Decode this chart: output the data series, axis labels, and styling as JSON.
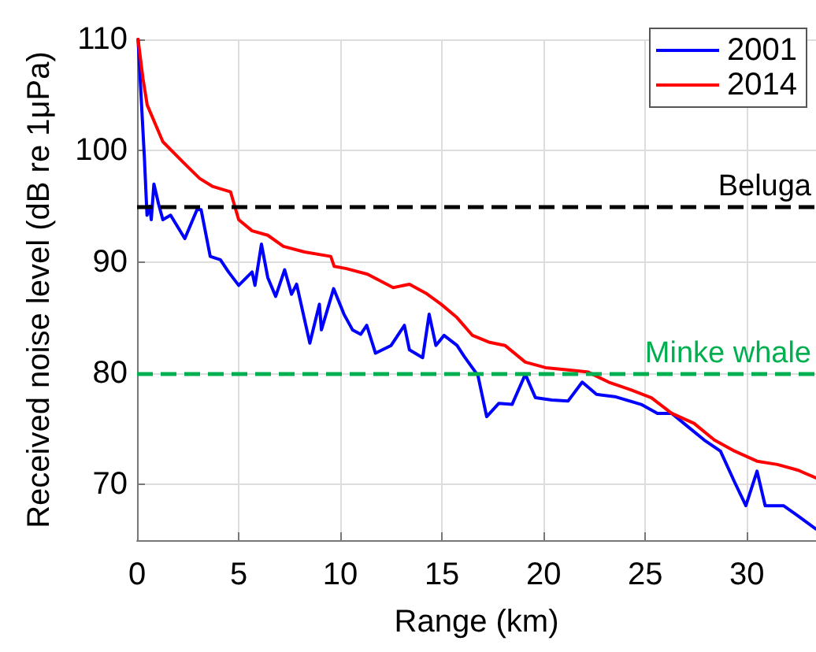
{
  "chart_data": {
    "type": "line",
    "xlabel": "Range (km)",
    "ylabel": "Received noise level (dB re 1μPa)",
    "xlim": [
      0,
      33.4
    ],
    "ylim": [
      65,
      110
    ],
    "xticks": [
      0,
      5,
      10,
      15,
      20,
      25,
      30
    ],
    "yticks": [
      70,
      80,
      90,
      100,
      110
    ],
    "grid": true,
    "legend": "top right",
    "marker": "none",
    "line_style": "solid",
    "series": [
      {
        "name": "2001",
        "color": "#0000ff",
        "x": [
          0.05,
          0.36,
          0.49,
          0.62,
          0.7,
          0.83,
          1.06,
          1.27,
          1.65,
          2.35,
          2.95,
          3.15,
          3.6,
          4.1,
          4.5,
          5.0,
          5.66,
          5.8,
          6.12,
          6.43,
          6.82,
          7.26,
          7.6,
          7.85,
          8.5,
          8.97,
          9.07,
          9.67,
          10.18,
          10.6,
          11.0,
          11.3,
          11.73,
          12.5,
          13.15,
          13.4,
          14.05,
          14.37,
          14.7,
          15.1,
          15.74,
          16.1,
          16.77,
          17.2,
          17.8,
          18.45,
          19.1,
          19.6,
          20.4,
          21.2,
          21.9,
          22.6,
          23.5,
          24.8,
          25.6,
          26.3,
          27.1,
          27.9,
          28.7,
          29.4,
          29.95,
          30.5,
          30.9,
          31.8,
          32.5,
          33.4
        ],
        "values": [
          110,
          99.4,
          94.2,
          95,
          93.8,
          97,
          95.2,
          93.8,
          94.2,
          92.1,
          94.7,
          94.7,
          90.5,
          90.2,
          89.1,
          87.9,
          89.1,
          87.9,
          91.6,
          88.6,
          86.9,
          89.3,
          87.1,
          88,
          82.7,
          86.2,
          83.9,
          87.6,
          85.3,
          83.9,
          83.5,
          84.3,
          81.8,
          82.5,
          84.3,
          82.1,
          81.4,
          85.3,
          82.5,
          83.4,
          82.5,
          81.5,
          79.8,
          76.1,
          77.3,
          77.2,
          79.9,
          77.8,
          77.6,
          77.5,
          79.2,
          78.1,
          77.9,
          77.2,
          76.4,
          76.4,
          75.2,
          74,
          73,
          70.2,
          68.1,
          71.2,
          68.1,
          68.1,
          67.2,
          66
        ]
      },
      {
        "name": "2014",
        "color": "#ff0000",
        "x": [
          0.05,
          0.29,
          0.5,
          1.27,
          2.3,
          3.08,
          3.7,
          4.6,
          5.0,
          5.66,
          6.43,
          7.2,
          8.24,
          9.53,
          9.7,
          10.3,
          11.34,
          12.6,
          13.4,
          14.2,
          14.96,
          15.74,
          16.5,
          17.3,
          18.1,
          19.1,
          20.1,
          21.2,
          22.2,
          23.2,
          24.3,
          25.3,
          26.3,
          27.4,
          28.4,
          29.4,
          30.5,
          31.5,
          32.5,
          33.4
        ],
        "values": [
          110,
          106.5,
          104.1,
          100.8,
          98.9,
          97.5,
          96.8,
          96.3,
          93.8,
          92.8,
          92.4,
          91.4,
          90.9,
          90.5,
          89.6,
          89.4,
          88.9,
          87.7,
          88,
          87.2,
          86.2,
          85,
          83.4,
          82.8,
          82.5,
          81,
          80.5,
          80.3,
          80.1,
          79.2,
          78.5,
          77.8,
          76.4,
          75.5,
          74,
          73,
          72.1,
          71.8,
          71.3,
          70.6
        ]
      }
    ],
    "ref_lines": [
      {
        "axis": "y",
        "value": 95,
        "label": "Beluga",
        "color": "#000000",
        "line_style": "dashed"
      },
      {
        "axis": "y",
        "value": 80,
        "label": "Minke whale",
        "color": "#00b050",
        "line_style": "dashed"
      }
    ]
  }
}
